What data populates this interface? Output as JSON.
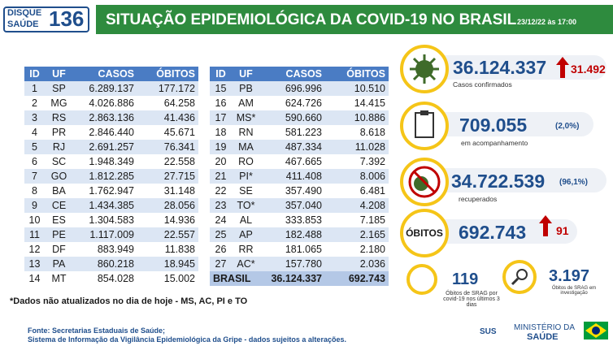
{
  "header": {
    "logo_top": "DISQUE",
    "logo_bottom": "SAÚDE",
    "logo_number": "136",
    "title": "SITUAÇÃO EPIDEMIOLÓGICA DA COVID-19 NO BRASIL",
    "date": "23/12/22 às 17:00"
  },
  "tables": {
    "columns": [
      "ID",
      "UF",
      "CASOS",
      "ÓBITOS"
    ],
    "left": [
      [
        "1",
        "SP",
        "6.289.137",
        "177.172"
      ],
      [
        "2",
        "MG",
        "4.026.886",
        "64.258"
      ],
      [
        "3",
        "RS",
        "2.863.136",
        "41.436"
      ],
      [
        "4",
        "PR",
        "2.846.440",
        "45.671"
      ],
      [
        "5",
        "RJ",
        "2.691.257",
        "76.341"
      ],
      [
        "6",
        "SC",
        "1.948.349",
        "22.558"
      ],
      [
        "7",
        "GO",
        "1.812.285",
        "27.715"
      ],
      [
        "8",
        "BA",
        "1.762.947",
        "31.148"
      ],
      [
        "9",
        "CE",
        "1.434.385",
        "28.056"
      ],
      [
        "10",
        "ES",
        "1.304.583",
        "14.936"
      ],
      [
        "11",
        "PE",
        "1.117.009",
        "22.557"
      ],
      [
        "12",
        "DF",
        "883.949",
        "11.838"
      ],
      [
        "13",
        "PA",
        "860.218",
        "18.945"
      ],
      [
        "14",
        "MT",
        "854.028",
        "15.002"
      ]
    ],
    "right": [
      [
        "15",
        "PB",
        "696.996",
        "10.510"
      ],
      [
        "16",
        "AM",
        "624.726",
        "14.415"
      ],
      [
        "17",
        "MS*",
        "590.660",
        "10.886"
      ],
      [
        "18",
        "RN",
        "581.223",
        "8.618"
      ],
      [
        "19",
        "MA",
        "487.334",
        "11.028"
      ],
      [
        "20",
        "RO",
        "467.665",
        "7.392"
      ],
      [
        "21",
        "PI*",
        "411.408",
        "8.006"
      ],
      [
        "22",
        "SE",
        "357.490",
        "6.481"
      ],
      [
        "23",
        "TO*",
        "357.040",
        "4.208"
      ],
      [
        "24",
        "AL",
        "333.853",
        "7.185"
      ],
      [
        "25",
        "AP",
        "182.488",
        "2.165"
      ],
      [
        "26",
        "RR",
        "181.065",
        "2.180"
      ],
      [
        "27",
        "AC*",
        "157.780",
        "2.036"
      ]
    ],
    "total": [
      "BRASIL",
      "36.124.337",
      "692.743"
    ]
  },
  "note": "*Dados não atualizados no dia de hoje - MS, AC, PI e TO",
  "panels": {
    "confirmed": {
      "value": "36.124.337",
      "change": "31.492",
      "label": "Casos confirmados"
    },
    "monitoring": {
      "value": "709.055",
      "percent": "(2,0%)",
      "label": "em acompanhamento"
    },
    "recovered": {
      "value": "34.722.539",
      "percent": "(96,1%)",
      "label": "recuperados"
    },
    "deaths": {
      "badge": "ÓBITOS",
      "value": "692.743",
      "change": "91"
    },
    "srag_recent": {
      "value": "119",
      "label": "Óbitos de SRAG por covid-19 nos últimos 3 dias"
    },
    "srag_investigation": {
      "value": "3.197",
      "label": "Óbitos de SRAG em investigação"
    }
  },
  "footer": {
    "source_1": "Fonte: Secretarias Estaduais de Saúde;",
    "source_2": "Sistema de Informação da Vigilância Epidemiológica da Gripe - dados sujeitos a alterações.",
    "sus": "SUS",
    "ministry_1": "MINISTÉRIO DA",
    "ministry_2": "SAÚDE"
  }
}
